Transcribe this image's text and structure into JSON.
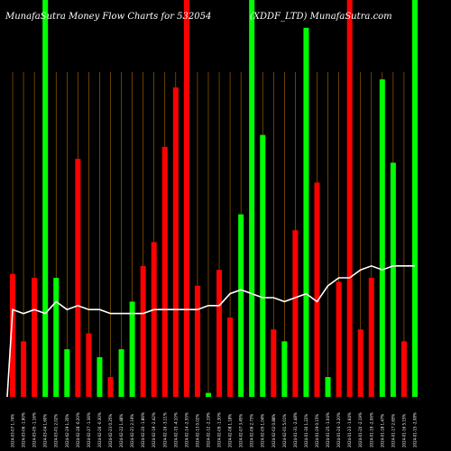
{
  "chart_data": {
    "type": "bar",
    "title": "MunafaSutra  Money Flow  Charts for 532054",
    "title_right": "(XDDF_LTD) MunafaSutra.com",
    "categories": [
      "2024-03-07 1.74%",
      "2024-03-06 -1.90%",
      "2024-03-05 -1.16%",
      "2024-03-04 1.60%",
      "2024-03-01 2.02%",
      "2024-02-29 1.35%",
      "2024-02-28 -0.20%",
      "2024-02-27 -1.36%",
      "2024-02-26 -0.30%",
      "2024-02-23 0.25%",
      "2024-02-22 1.48%",
      "2024-02-21 2.19%",
      "2024-02-20 -1.86%",
      "2024-02-19 -2.42%",
      "2024-02-16 -3.11%",
      "2024-02-15 -4.10%",
      "2024-02-14 -2.55%",
      "2024-02-13 0.02%",
      "2024-02-12 -2.19%",
      "2024-02-09 -1.30%",
      "2024-02-08 1.18%",
      "2024-02-07 3.45%",
      "2024-02-06 2.73%",
      "2024-02-05 1.04%",
      "2024-02-02 0.88%",
      "2024-02-01 5.01%",
      "2024-01-31 -2.48%",
      "2024-01-30 1.22%",
      "2024-01-29 0.15%",
      "2024-01-25 -1.04%",
      "2024-01-24 -3.20%",
      "2024-01-23 -1.64%",
      "2024-01-20 -2.19%",
      "2024-01-19 -2.06%",
      "2024-01-18 1.47%",
      "2024-01-17 2.65%",
      "2024-01-16 5.15%",
      "2024-01-15 -2.08%"
    ],
    "values": [
      0.31,
      0.14,
      0.3,
      1.0,
      0.3,
      0.12,
      0.6,
      0.16,
      0.1,
      0.05,
      0.12,
      0.24,
      0.33,
      0.39,
      0.63,
      0.78,
      1.0,
      0.28,
      0.01,
      0.32,
      0.2,
      0.46,
      1.0,
      0.66,
      0.17,
      0.14,
      0.42,
      0.93,
      0.54,
      0.05,
      0.29,
      1.0,
      0.17,
      0.3,
      0.8,
      0.59,
      0.14,
      1.0
    ],
    "bar_colors": [
      "red",
      "red",
      "red",
      "green",
      "green",
      "green",
      "red",
      "red",
      "green",
      "red",
      "green",
      "green",
      "red",
      "red",
      "red",
      "red",
      "red",
      "red",
      "green",
      "red",
      "red",
      "green",
      "green",
      "green",
      "red",
      "green",
      "red",
      "green",
      "red",
      "green",
      "red",
      "red",
      "red",
      "red",
      "green",
      "green",
      "red",
      "green"
    ],
    "ylim": [
      0,
      1
    ],
    "line": {
      "values": [
        0.22,
        0.21,
        0.22,
        0.21,
        0.24,
        0.22,
        0.23,
        0.22,
        0.22,
        0.21,
        0.21,
        0.21,
        0.21,
        0.22,
        0.22,
        0.22,
        0.22,
        0.22,
        0.23,
        0.23,
        0.26,
        0.27,
        0.26,
        0.25,
        0.25,
        0.24,
        0.25,
        0.26,
        0.24,
        0.28,
        0.3,
        0.3,
        0.32,
        0.33,
        0.32,
        0.33,
        0.33,
        0.33
      ],
      "ylim": [
        0,
        1
      ]
    },
    "grid": true,
    "colors": {
      "background": "#000000",
      "bar_green": "#00ff00",
      "bar_red": "#ff0000",
      "grid": "#b36b00",
      "line": "#ffffff",
      "text": "#ffffff"
    }
  }
}
